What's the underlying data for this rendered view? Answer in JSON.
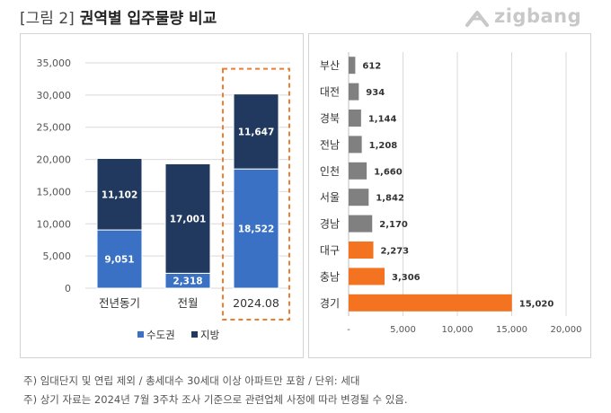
{
  "header": {
    "fig_label": "[그림 2]",
    "title": "권역별 입주물량 비교",
    "logo_text": "zigbang"
  },
  "chart_data": [
    {
      "type": "bar",
      "stacked": true,
      "categories": [
        "전년동기",
        "전월",
        "2024.08"
      ],
      "series": [
        {
          "name": "수도권",
          "values": [
            9051,
            2318,
            18522
          ],
          "color": "#3a71c4"
        },
        {
          "name": "지방",
          "values": [
            11102,
            17001,
            11647
          ],
          "color": "#22395f"
        }
      ],
      "value_labels": {
        "수도권": [
          "9,051",
          "2,318",
          "18,522"
        ],
        "지방": [
          "11,102",
          "17,001",
          "11,647"
        ]
      },
      "ylim": [
        0,
        35000
      ],
      "yticks": [
        0,
        5000,
        10000,
        15000,
        20000,
        25000,
        30000,
        35000
      ],
      "ytick_labels": [
        "0",
        "5,000",
        "10,000",
        "15,000",
        "20,000",
        "25,000",
        "30,000",
        "35,000"
      ],
      "highlight_category": "2024.08",
      "highlight_color": "#ee7d31",
      "legend_position": "bottom",
      "grid": true
    },
    {
      "type": "bar",
      "orientation": "horizontal",
      "categories": [
        "부산",
        "대전",
        "경북",
        "전남",
        "인천",
        "서울",
        "경남",
        "대구",
        "충남",
        "경기"
      ],
      "values": [
        612,
        934,
        1144,
        1208,
        1660,
        1842,
        2170,
        2273,
        3306,
        15020
      ],
      "value_labels": [
        "612",
        "934",
        "1,144",
        "1,208",
        "1,660",
        "1,842",
        "2,170",
        "2,273",
        "3,306",
        "15,020"
      ],
      "colors": [
        "#808080",
        "#808080",
        "#808080",
        "#808080",
        "#808080",
        "#808080",
        "#808080",
        "#f47321",
        "#f47321",
        "#f47321"
      ],
      "xlim": [
        0,
        20000
      ],
      "xticks": [
        0,
        5000,
        10000,
        15000,
        20000
      ],
      "xtick_labels": [
        "-",
        "5,000",
        "10,000",
        "15,000",
        "20,000"
      ],
      "grid": true
    }
  ],
  "footnotes": [
    "주) 임대단지 및 연립 제외 / 총세대수 30세대 이상 아파트만 포함 / 단위: 세대",
    "주) 상기 자료는 2024년 7월 3주차 조사 기준으로 관련업체 사정에 따라 변경될 수 있음."
  ]
}
